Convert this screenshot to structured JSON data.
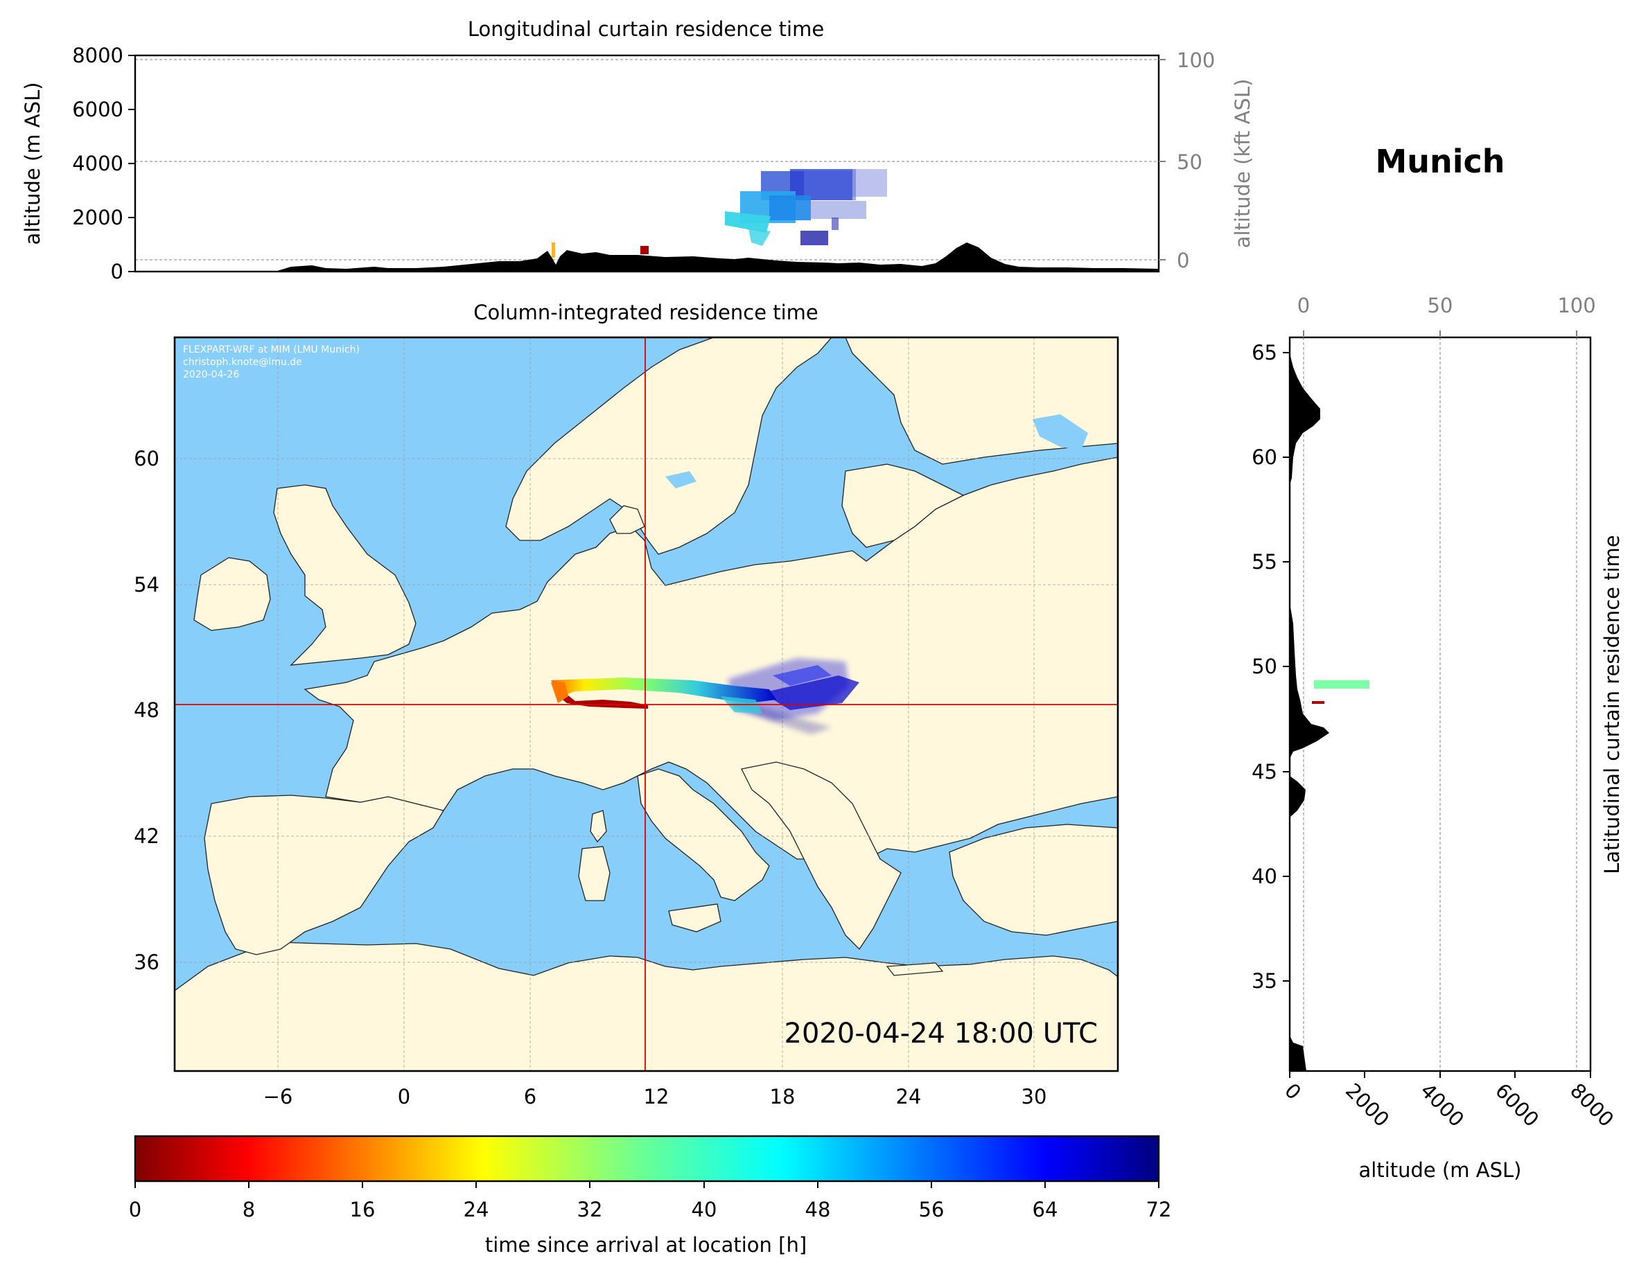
{
  "location_title": "Munich",
  "timestamp": "2020-04-24 18:00 UTC",
  "credit": [
    "FLEXPART-WRF at MIM (LMU Munich)",
    "christoph.knote@lmu.de",
    "2020-04-26"
  ],
  "colors": {
    "ocean": "#87CEFA",
    "land": "#FFF8DC",
    "terrain": "#000000",
    "crosshair": "#DD0000",
    "secondary_axis": "#808080"
  },
  "chart_data": [
    {
      "type": "heatmap",
      "title": "Longitudinal curtain residence time",
      "ylabel": "altitude (m ASL)",
      "ylim": [
        0,
        8000
      ],
      "yticks": [
        "0",
        "2000",
        "4000",
        "6000",
        "8000"
      ],
      "secondary_ylabel": "altitude (kft ASL)",
      "secondary_yticks": [
        "0",
        "50",
        "100"
      ],
      "xlim": [
        -10,
        35
      ]
    },
    {
      "type": "heatmap",
      "title": "Column-integrated residence time",
      "xlim": [
        -10,
        35
      ],
      "ylim": [
        30.5,
        65.5
      ],
      "xticks": [
        "−6",
        "0",
        "6",
        "12",
        "18",
        "24",
        "30"
      ],
      "yticks": [
        "36",
        "42",
        "48",
        "54",
        "60"
      ],
      "receptor": {
        "lon": 11.5,
        "lat": 48.1
      }
    },
    {
      "type": "heatmap",
      "title": "Latitudinal curtain residence time",
      "xlabel": "altitude (m ASL)",
      "xlim": [
        0,
        8000
      ],
      "xticks": [
        "0",
        "2000",
        "4000",
        "6000",
        "8000"
      ],
      "secondary_xticks": [
        "0",
        "50",
        "100"
      ],
      "ylim": [
        30.5,
        65.5
      ],
      "yticks": [
        "35",
        "40",
        "45",
        "50",
        "55",
        "60",
        "65"
      ]
    },
    {
      "type": "colorbar",
      "label": "time since arrival at location [h]",
      "range": [
        0,
        72
      ],
      "ticks": [
        "0",
        "8",
        "16",
        "24",
        "32",
        "40",
        "48",
        "56",
        "64",
        "72"
      ],
      "colormap": "jet_r"
    }
  ]
}
